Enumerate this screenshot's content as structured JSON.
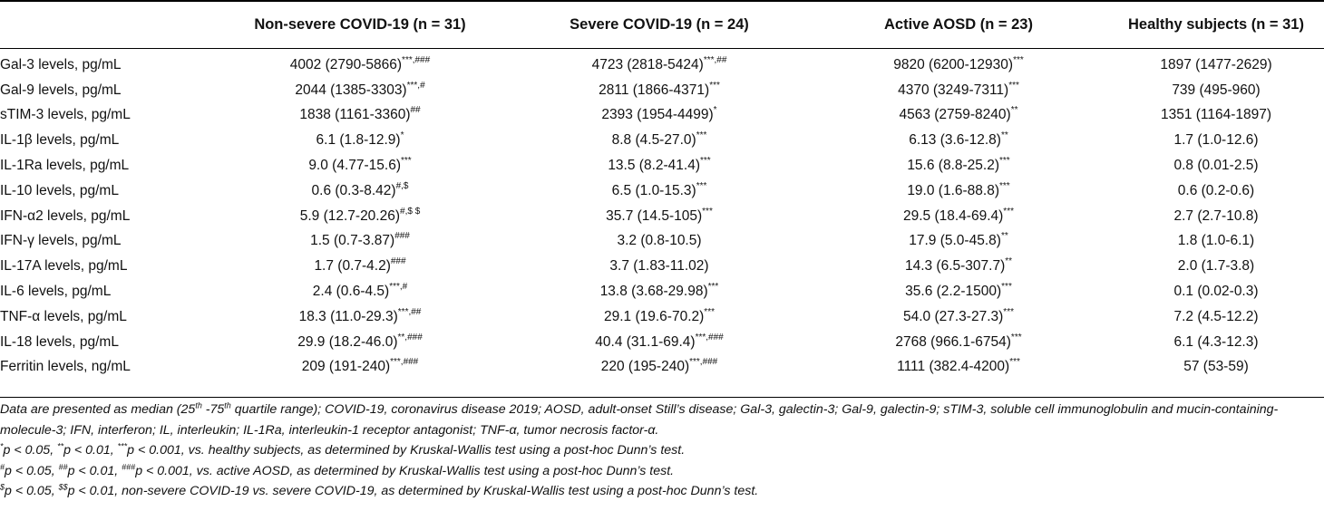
{
  "table": {
    "headers": [
      "",
      "Non-severe COVID-19 (n = 31)",
      "Severe COVID-19 (n = 24)",
      "Active AOSD (n = 23)",
      "Healthy subjects  (n = 31)"
    ],
    "rows": [
      {
        "label": "Gal-3 levels, pg/mL",
        "cells": [
          {
            "v": "4002 (2790-5866)",
            "s": "***,###"
          },
          {
            "v": "4723 (2818-5424)",
            "s": "***,##"
          },
          {
            "v": "9820 (6200-12930)",
            "s": "***"
          },
          {
            "v": "1897 (1477-2629)",
            "s": ""
          }
        ]
      },
      {
        "label": "Gal-9 levels, pg/mL",
        "cells": [
          {
            "v": "2044 (1385-3303)",
            "s": "***,#"
          },
          {
            "v": "2811 (1866-4371)",
            "s": "***"
          },
          {
            "v": "4370 (3249-7311)",
            "s": "***"
          },
          {
            "v": "739 (495-960)",
            "s": ""
          }
        ]
      },
      {
        "label": "sTIM-3 levels, pg/mL",
        "cells": [
          {
            "v": "1838  (1161-3360)",
            "s": "##"
          },
          {
            "v": "2393 (1954-4499)",
            "s": "*"
          },
          {
            "v": "4563 (2759-8240)",
            "s": "**"
          },
          {
            "v": "1351 (1164-1897)",
            "s": ""
          }
        ]
      },
      {
        "label": "IL-1β levels, pg/mL",
        "cells": [
          {
            "v": "6.1 (1.8-12.9)",
            "s": "*"
          },
          {
            "v": "8.8 (4.5-27.0)",
            "s": "***"
          },
          {
            "v": "6.13 (3.6-12.8)",
            "s": "**"
          },
          {
            "v": "1.7 (1.0-12.6)",
            "s": ""
          }
        ]
      },
      {
        "label": "IL-1Ra levels, pg/mL",
        "cells": [
          {
            "v": "9.0 (4.77-15.6)",
            "s": "***"
          },
          {
            "v": "13.5 (8.2-41.4)",
            "s": "***"
          },
          {
            "v": "15.6 (8.8-25.2)",
            "s": "***"
          },
          {
            "v": "0.8 (0.01-2.5)",
            "s": ""
          }
        ]
      },
      {
        "label": "IL-10 levels, pg/mL",
        "cells": [
          {
            "v": "0.6 (0.3-8.42)",
            "s": "#,$"
          },
          {
            "v": "6.5 (1.0-15.3)",
            "s": "***"
          },
          {
            "v": "19.0 (1.6-88.8)",
            "s": "***"
          },
          {
            "v": "0.6 (0.2-0.6)",
            "s": ""
          }
        ]
      },
      {
        "label": "IFN-α2 levels, pg/mL",
        "cells": [
          {
            "v": "5.9 (12.7-20.26)",
            "s": "#,$ $"
          },
          {
            "v": "35.7 (14.5-105)",
            "s": "***"
          },
          {
            "v": "29.5 (18.4-69.4)",
            "s": "***"
          },
          {
            "v": "2.7 (2.7-10.8)",
            "s": ""
          }
        ]
      },
      {
        "label": "IFN-γ levels, pg/mL",
        "cells": [
          {
            "v": "1.5 (0.7-3.87)",
            "s": "###"
          },
          {
            "v": "3.2 (0.8-10.5)",
            "s": ""
          },
          {
            "v": "17.9 (5.0-45.8)",
            "s": "**"
          },
          {
            "v": "1.8 (1.0-6.1)",
            "s": ""
          }
        ]
      },
      {
        "label": "IL-17A levels, pg/mL",
        "cells": [
          {
            "v": "1.7 (0.7-4.2)",
            "s": "###"
          },
          {
            "v": "3.7 (1.83-11.02)",
            "s": ""
          },
          {
            "v": "14.3 (6.5-307.7)",
            "s": "**"
          },
          {
            "v": "2.0 (1.7-3.8)",
            "s": ""
          }
        ]
      },
      {
        "label": "IL-6 levels, pg/mL",
        "cells": [
          {
            "v": "2.4 (0.6-4.5)",
            "s": "***,#"
          },
          {
            "v": "13.8 (3.68-29.98)",
            "s": "***"
          },
          {
            "v": "35.6 (2.2-1500)",
            "s": "***"
          },
          {
            "v": "0.1 (0.02-0.3)",
            "s": ""
          }
        ]
      },
      {
        "label": "TNF-α levels, pg/mL",
        "cells": [
          {
            "v": "18.3 (11.0-29.3)",
            "s": "***,##"
          },
          {
            "v": "29.1 (19.6-70.2)",
            "s": "***"
          },
          {
            "v": "54.0 (27.3-27.3)",
            "s": "***"
          },
          {
            "v": "7.2 (4.5-12.2)",
            "s": ""
          }
        ]
      },
      {
        "label": "IL-18 levels, pg/mL",
        "cells": [
          {
            "v": "29.9 (18.2-46.0)",
            "s": "**,###"
          },
          {
            "v": "40.4 (31.1-69.4)",
            "s": "***,###"
          },
          {
            "v": "2768 (966.1-6754)",
            "s": "***"
          },
          {
            "v": "6.1 (4.3-12.3)",
            "s": ""
          }
        ]
      },
      {
        "label": "Ferritin levels, ng/mL",
        "cells": [
          {
            "v": "209 (191-240)",
            "s": "***,###"
          },
          {
            "v": "220 (195-240)",
            "s": "***,###"
          },
          {
            "v": "1111 (382.4-4200)",
            "s": "***"
          },
          {
            "v": "57  (53-59)",
            "s": ""
          }
        ]
      }
    ]
  },
  "footnotes": {
    "abbrev": {
      "pre": "Data are presented as median  (25",
      "sup1": "th",
      "mid": " -75",
      "sup2": "th",
      "post": " quartile range); COVID-19, coronavirus disease 2019; AOSD, adult-onset Still’s disease; Gal-3, galectin-3; Gal-9, galectin-9; sTIM-3, soluble cell immunoglobulin and mucin-containing-molecule-3; IFN, interferon; IL, interleukin; IL-1Ra, interleukin-1 receptor antagonist; TNF-α, tumor necrosis factor-α."
    },
    "healthy": {
      "s1": "*",
      "t1": "p < 0.05, ",
      "s2": "**",
      "t2": "p < 0.01, ",
      "s3": "***",
      "t3": "p < 0.001, vs. healthy subjects, as determined by Kruskal-Wallis test using a post-hoc Dunn’s test."
    },
    "aosd": {
      "s1": "#",
      "t1": "p < 0.05, ",
      "s2": "##",
      "t2": "p < 0.01, ",
      "s3": "###",
      "t3": "p < 0.001, vs. active AOSD, as determined by Kruskal-Wallis test using a post-hoc Dunn’s test."
    },
    "severity": {
      "s1": "$",
      "t1": "p < 0.05, ",
      "s2": "$$",
      "t2": "p < 0.01, non-severe COVID-19 vs. severe COVID-19, as determined by Kruskal-Wallis test using a post-hoc Dunn’s test."
    }
  }
}
